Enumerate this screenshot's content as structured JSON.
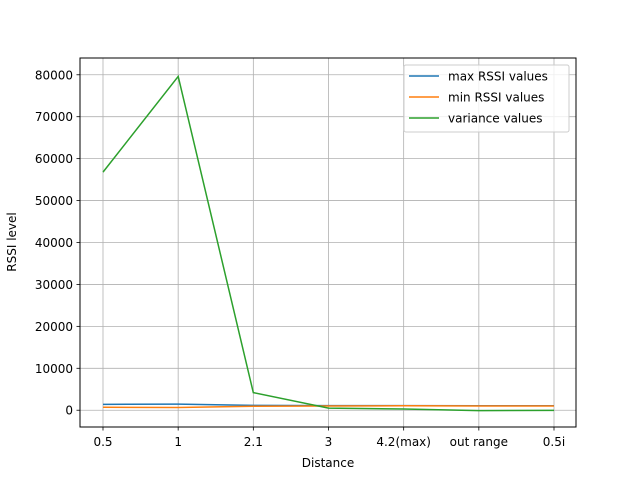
{
  "chart_data": {
    "type": "line",
    "xlabel": "Distance",
    "ylabel": "RSSI level",
    "categories": [
      "0.5",
      "1",
      "2.1",
      "3",
      "4.2(max)",
      "out range",
      "0.5i"
    ],
    "ylim": [
      -4000,
      84000
    ],
    "yticks": [
      0,
      10000,
      20000,
      30000,
      40000,
      50000,
      60000,
      70000,
      80000
    ],
    "grid": true,
    "legend_position": "top-right",
    "series": [
      {
        "name": "max RSSI values",
        "color": "#1f77b4",
        "values": [
          1400,
          1450,
          1150,
          1100,
          1100,
          1050,
          1050
        ]
      },
      {
        "name": "min RSSI values",
        "color": "#ff7f0e",
        "values": [
          700,
          650,
          950,
          1000,
          1050,
          1000,
          1000
        ]
      },
      {
        "name": "variance values",
        "color": "#2ca02c",
        "values": [
          56800,
          79600,
          4200,
          500,
          300,
          -100,
          -50
        ]
      }
    ]
  }
}
